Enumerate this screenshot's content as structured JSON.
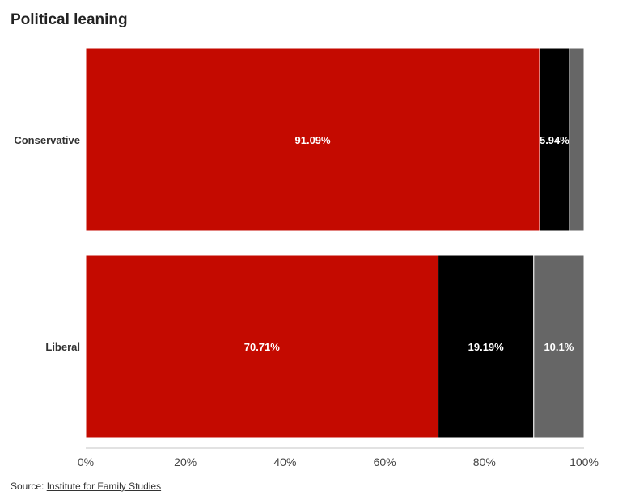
{
  "chart_data": {
    "type": "bar",
    "orientation": "horizontal",
    "stacked": true,
    "title": "Political leaning",
    "categories": [
      "Conservative",
      "Liberal"
    ],
    "series": [
      {
        "color": "#c40a00",
        "values": [
          91.09,
          70.71
        ],
        "labels": [
          "91.09%",
          "70.71%"
        ]
      },
      {
        "color": "#000000",
        "values": [
          5.94,
          19.19
        ],
        "labels": [
          "5.94%",
          "19.19%"
        ]
      },
      {
        "color": "#666666",
        "values": [
          2.97,
          10.1
        ],
        "labels": [
          "",
          "10.1%"
        ]
      }
    ],
    "xlim": [
      0,
      100
    ],
    "x_ticks": [
      0,
      20,
      40,
      60,
      80,
      100
    ],
    "x_tick_labels": [
      "0%",
      "20%",
      "40%",
      "60%",
      "80%",
      "100%"
    ],
    "grid": false,
    "legend": "none"
  },
  "source": {
    "prefix": "Source: ",
    "link_text": "Institute for Family Studies"
  }
}
